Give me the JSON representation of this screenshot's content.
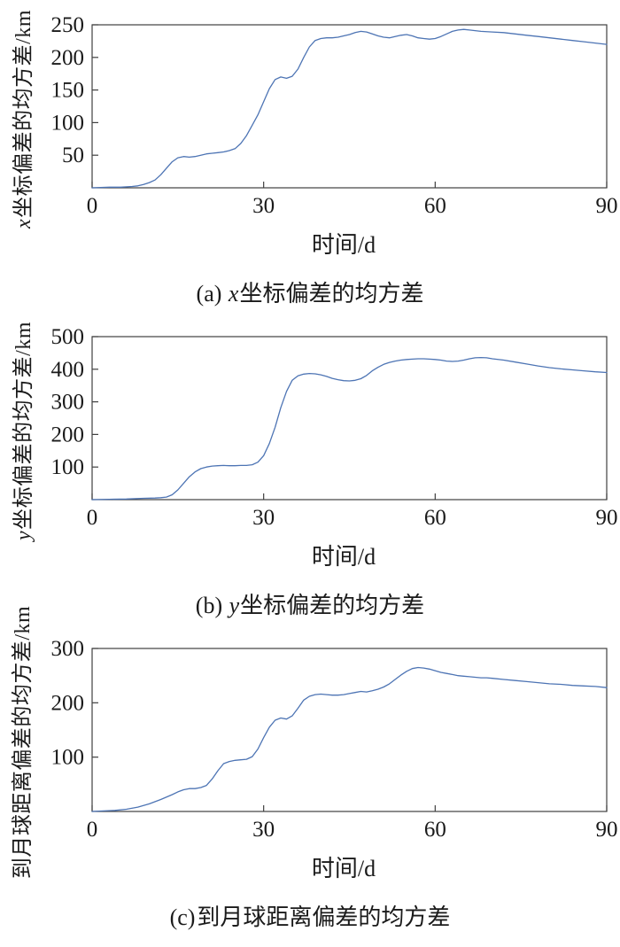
{
  "colors": {
    "line": "#4d74b4",
    "axis": "#404040",
    "text": "#1a1a1a"
  },
  "chart_data": [
    {
      "id": "a",
      "type": "line",
      "ylabel": {
        "italic": "x",
        "text": "坐标偏差的均方差/km"
      },
      "xlabel": "时间/d",
      "caption": {
        "prefix": "(a) ",
        "italic": "x",
        "text": "坐标偏差的均方差"
      },
      "xlim": [
        0,
        90
      ],
      "ylim": [
        0,
        250
      ],
      "xticks": [
        0,
        30,
        60,
        90
      ],
      "yticks": [
        50,
        100,
        150,
        200,
        250
      ],
      "legend": null,
      "grid": false,
      "points": [
        [
          0,
          0
        ],
        [
          3,
          1
        ],
        [
          5,
          1
        ],
        [
          7,
          2
        ],
        [
          8,
          3
        ],
        [
          9,
          5
        ],
        [
          10,
          8
        ],
        [
          11,
          12
        ],
        [
          12,
          20
        ],
        [
          13,
          30
        ],
        [
          14,
          40
        ],
        [
          15,
          46
        ],
        [
          16,
          48
        ],
        [
          17,
          47
        ],
        [
          18,
          48
        ],
        [
          19,
          50
        ],
        [
          20,
          52
        ],
        [
          21,
          53
        ],
        [
          22,
          54
        ],
        [
          23,
          55
        ],
        [
          24,
          57
        ],
        [
          25,
          60
        ],
        [
          26,
          68
        ],
        [
          27,
          80
        ],
        [
          28,
          96
        ],
        [
          29,
          112
        ],
        [
          30,
          132
        ],
        [
          31,
          152
        ],
        [
          32,
          166
        ],
        [
          33,
          170
        ],
        [
          34,
          168
        ],
        [
          35,
          171
        ],
        [
          36,
          182
        ],
        [
          37,
          200
        ],
        [
          38,
          216
        ],
        [
          39,
          226
        ],
        [
          40,
          229
        ],
        [
          41,
          230
        ],
        [
          42,
          230
        ],
        [
          43,
          231
        ],
        [
          44,
          233
        ],
        [
          45,
          235
        ],
        [
          46,
          238
        ],
        [
          47,
          240
        ],
        [
          48,
          239
        ],
        [
          49,
          236
        ],
        [
          50,
          233
        ],
        [
          51,
          231
        ],
        [
          52,
          230
        ],
        [
          53,
          232
        ],
        [
          54,
          234
        ],
        [
          55,
          235
        ],
        [
          56,
          233
        ],
        [
          57,
          230
        ],
        [
          58,
          229
        ],
        [
          59,
          228
        ],
        [
          60,
          229
        ],
        [
          61,
          232
        ],
        [
          62,
          236
        ],
        [
          63,
          240
        ],
        [
          64,
          242
        ],
        [
          65,
          243
        ],
        [
          66,
          242
        ],
        [
          67,
          241
        ],
        [
          68,
          240
        ],
        [
          70,
          239
        ],
        [
          72,
          238
        ],
        [
          74,
          236
        ],
        [
          76,
          234
        ],
        [
          78,
          232
        ],
        [
          80,
          230
        ],
        [
          82,
          228
        ],
        [
          84,
          226
        ],
        [
          86,
          224
        ],
        [
          88,
          222
        ],
        [
          90,
          220
        ]
      ]
    },
    {
      "id": "b",
      "type": "line",
      "ylabel": {
        "italic": "y",
        "text": "坐标偏差的均方差/km"
      },
      "xlabel": "时间/d",
      "caption": {
        "prefix": "(b) ",
        "italic": "y",
        "text": "坐标偏差的均方差"
      },
      "xlim": [
        0,
        90
      ],
      "ylim": [
        0,
        500
      ],
      "xticks": [
        0,
        30,
        60,
        90
      ],
      "yticks": [
        100,
        200,
        300,
        400,
        500
      ],
      "legend": null,
      "grid": false,
      "points": [
        [
          0,
          0
        ],
        [
          3,
          1
        ],
        [
          6,
          2
        ],
        [
          9,
          4
        ],
        [
          11,
          5
        ],
        [
          12,
          6
        ],
        [
          13,
          8
        ],
        [
          14,
          15
        ],
        [
          15,
          30
        ],
        [
          16,
          50
        ],
        [
          17,
          70
        ],
        [
          18,
          85
        ],
        [
          19,
          95
        ],
        [
          20,
          100
        ],
        [
          21,
          103
        ],
        [
          22,
          104
        ],
        [
          23,
          105
        ],
        [
          24,
          104
        ],
        [
          25,
          104
        ],
        [
          26,
          105
        ],
        [
          27,
          105
        ],
        [
          28,
          107
        ],
        [
          29,
          115
        ],
        [
          30,
          135
        ],
        [
          31,
          172
        ],
        [
          32,
          222
        ],
        [
          33,
          282
        ],
        [
          34,
          332
        ],
        [
          35,
          366
        ],
        [
          36,
          380
        ],
        [
          37,
          385
        ],
        [
          38,
          387
        ],
        [
          39,
          386
        ],
        [
          40,
          383
        ],
        [
          41,
          378
        ],
        [
          42,
          372
        ],
        [
          43,
          368
        ],
        [
          44,
          365
        ],
        [
          45,
          364
        ],
        [
          46,
          366
        ],
        [
          47,
          371
        ],
        [
          48,
          381
        ],
        [
          49,
          395
        ],
        [
          50,
          406
        ],
        [
          51,
          415
        ],
        [
          52,
          421
        ],
        [
          53,
          425
        ],
        [
          54,
          428
        ],
        [
          55,
          430
        ],
        [
          56,
          431
        ],
        [
          57,
          432
        ],
        [
          58,
          432
        ],
        [
          59,
          431
        ],
        [
          60,
          430
        ],
        [
          61,
          428
        ],
        [
          62,
          425
        ],
        [
          63,
          424
        ],
        [
          64,
          425
        ],
        [
          65,
          428
        ],
        [
          66,
          432
        ],
        [
          67,
          435
        ],
        [
          68,
          436
        ],
        [
          69,
          435
        ],
        [
          70,
          432
        ],
        [
          72,
          428
        ],
        [
          74,
          422
        ],
        [
          76,
          416
        ],
        [
          78,
          410
        ],
        [
          80,
          405
        ],
        [
          82,
          401
        ],
        [
          84,
          398
        ],
        [
          86,
          395
        ],
        [
          88,
          392
        ],
        [
          90,
          390
        ]
      ]
    },
    {
      "id": "c",
      "type": "line",
      "ylabel": {
        "italic": "",
        "text": "到月球距离偏差的均方差/km"
      },
      "xlabel": "时间/d",
      "caption": {
        "prefix": "(c)",
        "italic": "",
        "text": "到月球距离偏差的均方差"
      },
      "xlim": [
        0,
        90
      ],
      "ylim": [
        0,
        300
      ],
      "xticks": [
        0,
        30,
        60,
        90
      ],
      "yticks": [
        100,
        200,
        300
      ],
      "legend": null,
      "grid": false,
      "points": [
        [
          0,
          0
        ],
        [
          2,
          1
        ],
        [
          4,
          2
        ],
        [
          6,
          4
        ],
        [
          8,
          8
        ],
        [
          10,
          14
        ],
        [
          12,
          22
        ],
        [
          14,
          31
        ],
        [
          15,
          36
        ],
        [
          16,
          40
        ],
        [
          17,
          42
        ],
        [
          18,
          42
        ],
        [
          19,
          44
        ],
        [
          20,
          48
        ],
        [
          21,
          60
        ],
        [
          22,
          75
        ],
        [
          23,
          88
        ],
        [
          24,
          92
        ],
        [
          25,
          94
        ],
        [
          26,
          95
        ],
        [
          27,
          96
        ],
        [
          28,
          101
        ],
        [
          29,
          115
        ],
        [
          30,
          136
        ],
        [
          31,
          155
        ],
        [
          32,
          168
        ],
        [
          33,
          172
        ],
        [
          34,
          170
        ],
        [
          35,
          176
        ],
        [
          36,
          190
        ],
        [
          37,
          205
        ],
        [
          38,
          212
        ],
        [
          39,
          215
        ],
        [
          40,
          216
        ],
        [
          41,
          215
        ],
        [
          42,
          214
        ],
        [
          43,
          214
        ],
        [
          44,
          215
        ],
        [
          45,
          217
        ],
        [
          46,
          219
        ],
        [
          47,
          221
        ],
        [
          48,
          220
        ],
        [
          49,
          222
        ],
        [
          50,
          225
        ],
        [
          51,
          229
        ],
        [
          52,
          235
        ],
        [
          53,
          243
        ],
        [
          54,
          251
        ],
        [
          55,
          258
        ],
        [
          56,
          263
        ],
        [
          57,
          265
        ],
        [
          58,
          264
        ],
        [
          59,
          262
        ],
        [
          60,
          259
        ],
        [
          61,
          256
        ],
        [
          62,
          254
        ],
        [
          63,
          252
        ],
        [
          64,
          250
        ],
        [
          65,
          249
        ],
        [
          66,
          248
        ],
        [
          67,
          247
        ],
        [
          68,
          246
        ],
        [
          69,
          246
        ],
        [
          70,
          245
        ],
        [
          72,
          243
        ],
        [
          74,
          241
        ],
        [
          76,
          239
        ],
        [
          78,
          237
        ],
        [
          80,
          235
        ],
        [
          82,
          234
        ],
        [
          84,
          232
        ],
        [
          86,
          231
        ],
        [
          88,
          230
        ],
        [
          90,
          228
        ]
      ]
    }
  ]
}
